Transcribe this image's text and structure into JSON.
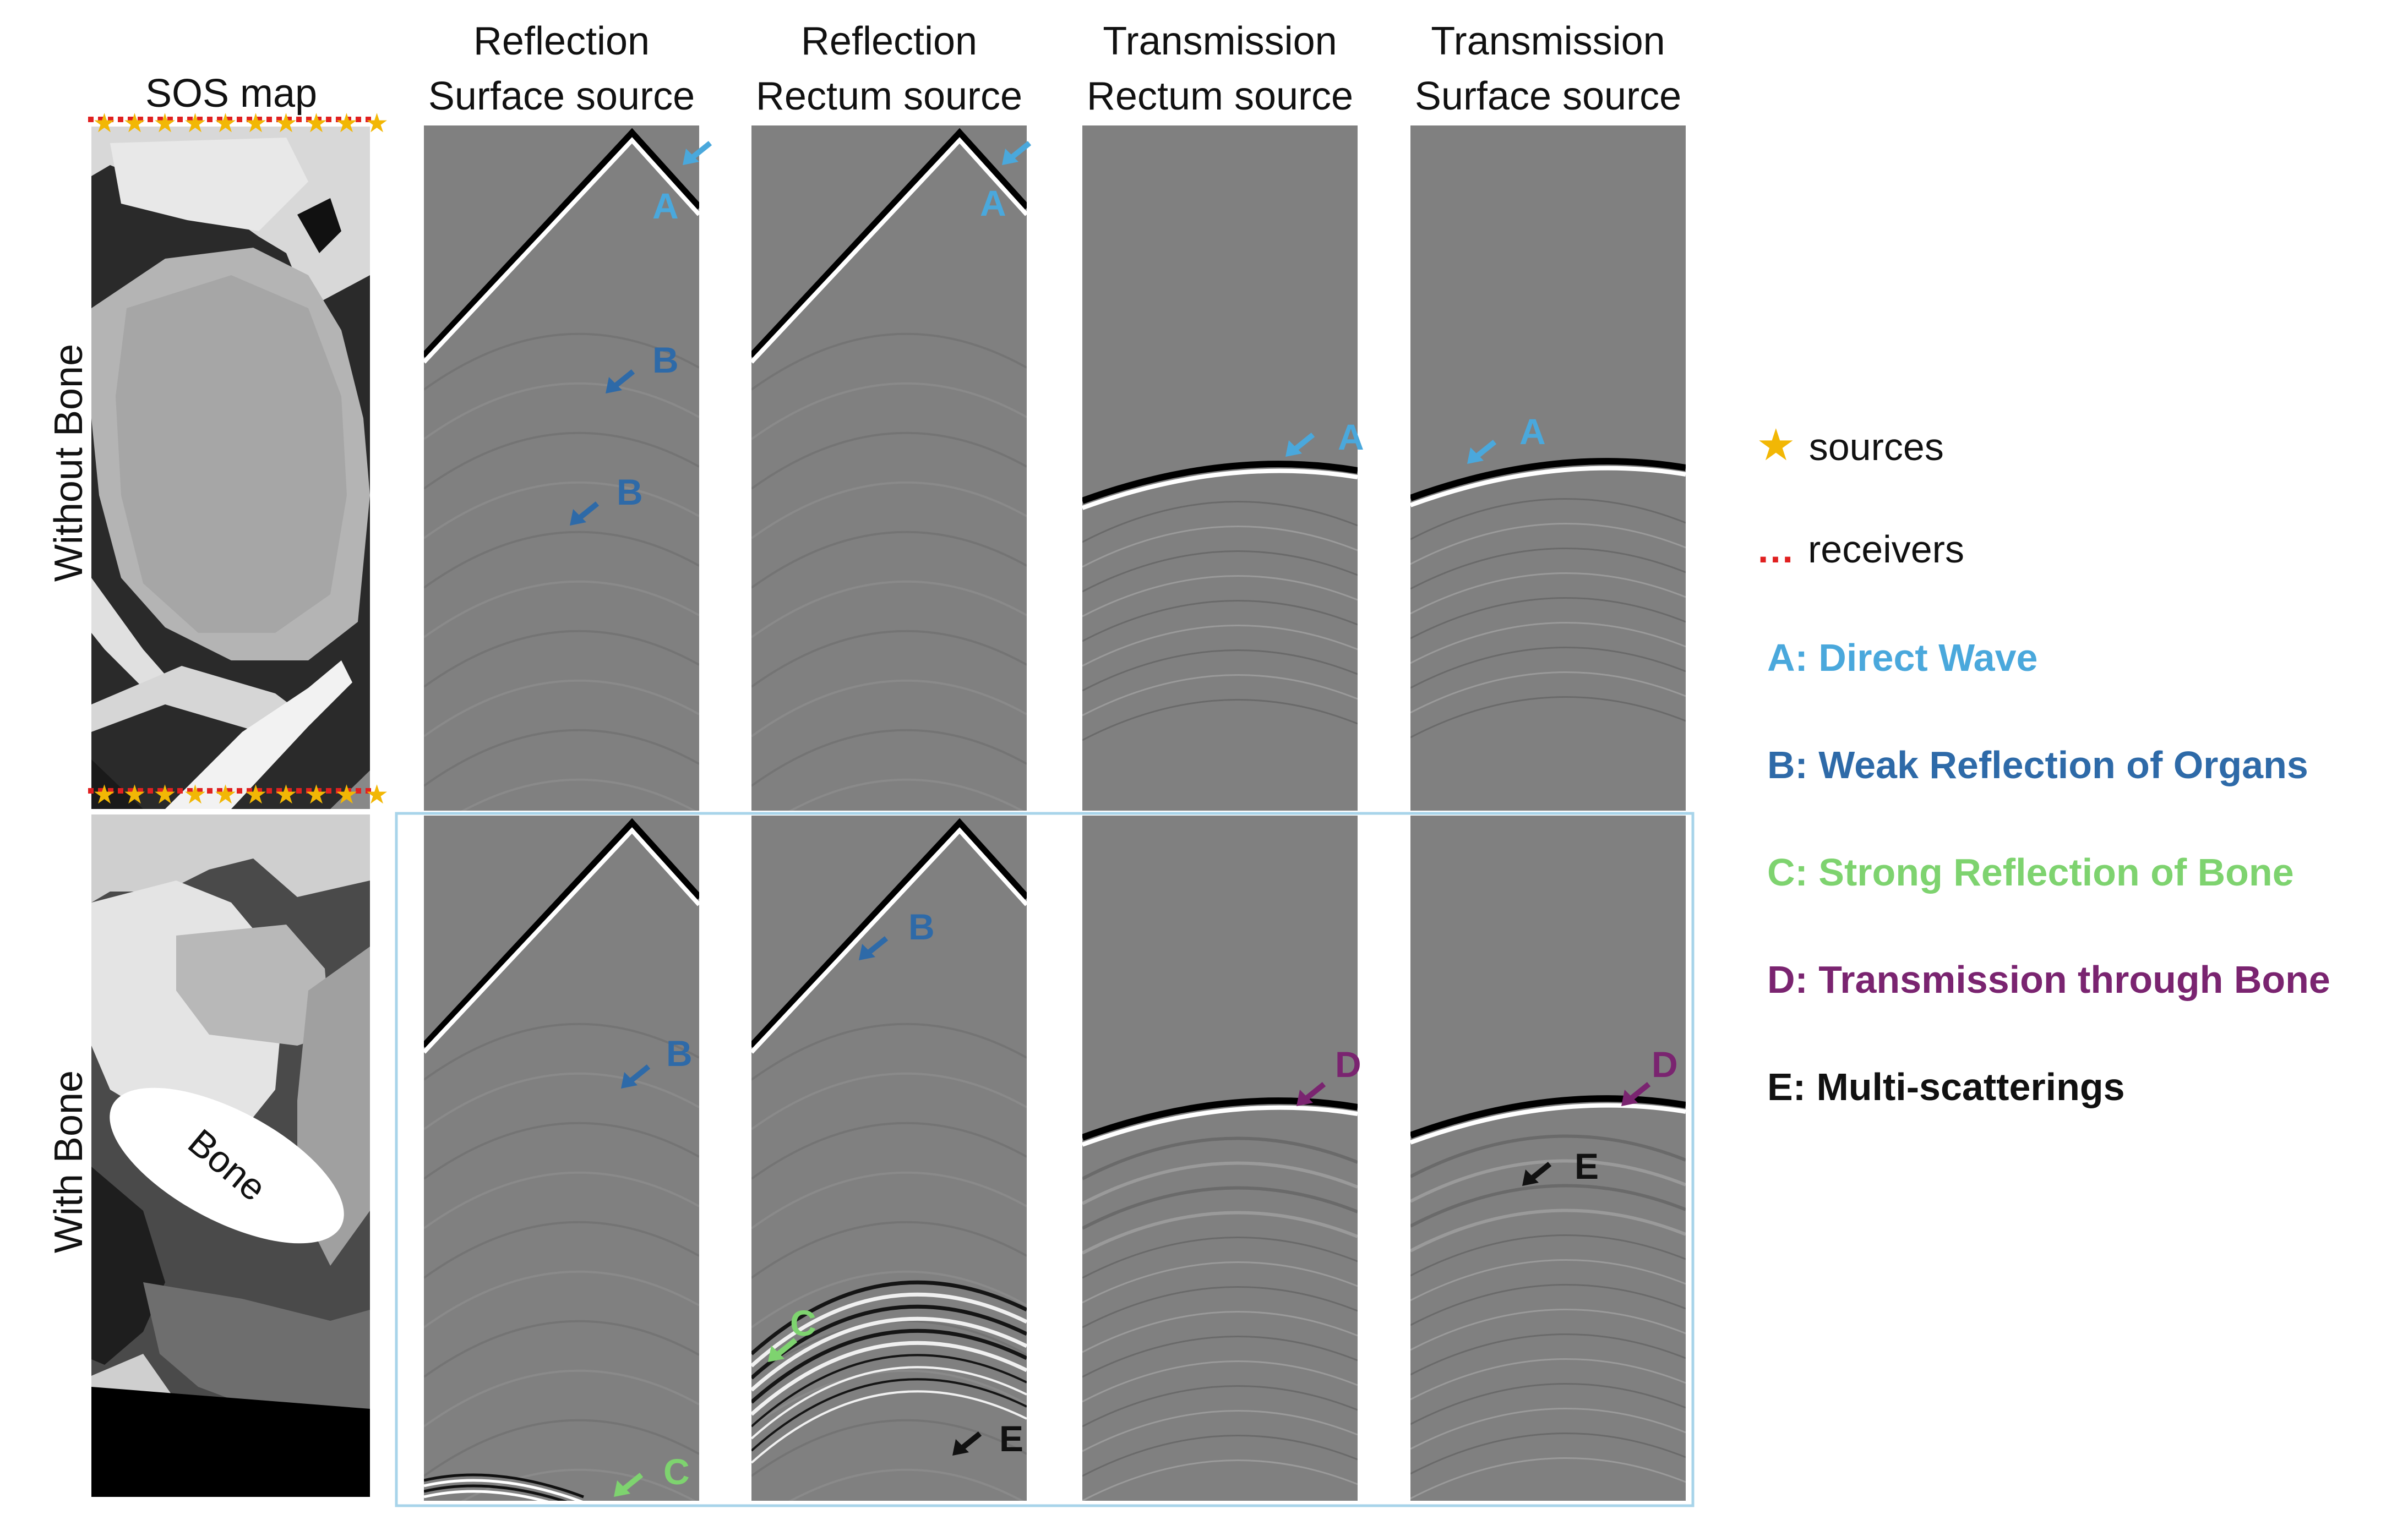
{
  "columns": [
    {
      "line1": "SOS map",
      "line2": ""
    },
    {
      "line1": "Reflection",
      "line2": "Surface source"
    },
    {
      "line1": "Reflection",
      "line2": "Rectum source"
    },
    {
      "line1": "Transmission",
      "line2": "Rectum source"
    },
    {
      "line1": "Transmission",
      "line2": "Surface source"
    }
  ],
  "rows": [
    "Without Bone",
    "With Bone"
  ],
  "bone_label": "Bone",
  "legend": {
    "sources": "sources",
    "receivers": "receivers",
    "A": "A: Direct Wave",
    "B": "B: Weak Reflection of Organs",
    "C": "C: Strong Reflection of Bone",
    "D": "D: Transmission through Bone",
    "E": "E: Multi-scatterings"
  },
  "colors": {
    "A": "#4aa8dc",
    "B": "#2e6aa8",
    "C": "#7ed36f",
    "D": "#7a2470",
    "E": "#111111",
    "source_star": "#f2b705",
    "receiver_dot": "#e02020",
    "panel_gray": "#808080",
    "highlight_box": "#a8d4ea"
  },
  "annotations": {
    "A": "A",
    "B": "B",
    "C": "C",
    "D": "D",
    "E": "E"
  }
}
